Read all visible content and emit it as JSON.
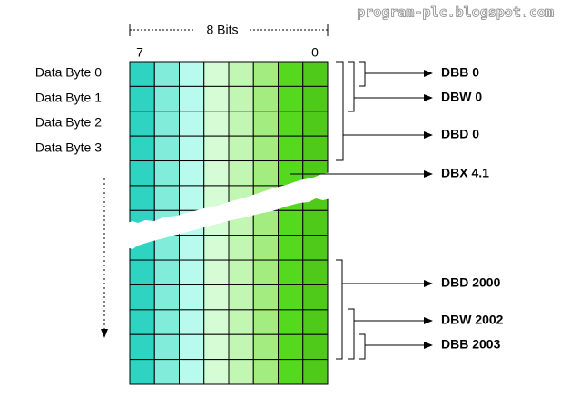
{
  "watermark": "program-plc.blogspot.com",
  "bits_label": "8 Bits",
  "bit_high": "7",
  "bit_low": "0",
  "rows": [
    "Data Byte 0",
    "Data Byte 1",
    "Data Byte 2",
    "Data Byte 3"
  ],
  "outputs": [
    "DBB 0",
    "DBW 0",
    "DBD 0",
    "DBX 4.1",
    "DBD 2000",
    "DBW 2002",
    "DBB 2003"
  ]
}
